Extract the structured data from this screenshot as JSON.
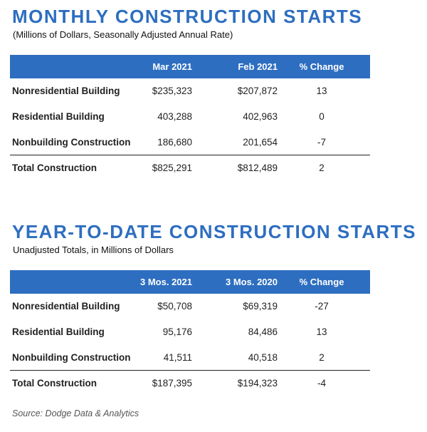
{
  "tables": [
    {
      "title": "MONTHLY CONSTRUCTION STARTS",
      "subtitle": "(Millions of Dollars, Seasonally Adjusted Annual Rate)",
      "columns": [
        "Mar 2021",
        "Feb 2021",
        "% Change"
      ],
      "rows": [
        {
          "label": "Nonresidential Building",
          "cells": [
            "$235,323",
            "$207,872",
            "13"
          ]
        },
        {
          "label": "Residential Building",
          "cells": [
            "403,288",
            "402,963",
            "0"
          ]
        },
        {
          "label": "Nonbuilding Construction",
          "cells": [
            "186,680",
            "201,654",
            "-7"
          ]
        },
        {
          "label": "Total Construction",
          "cells": [
            "$825,291",
            "$812,489",
            "2"
          ]
        }
      ]
    },
    {
      "title": "YEAR-TO-DATE CONSTRUCTION STARTS",
      "subtitle": "Unadjusted Totals, in Millions of Dollars",
      "columns": [
        "3 Mos. 2021",
        "3 Mos. 2020",
        "% Change"
      ],
      "rows": [
        {
          "label": "Nonresidential Building",
          "cells": [
            "$50,708",
            "$69,319",
            "-27"
          ]
        },
        {
          "label": "Residential Building",
          "cells": [
            "95,176",
            "84,486",
            "13"
          ]
        },
        {
          "label": "Nonbuilding Construction",
          "cells": [
            "41,511",
            "40,518",
            "2"
          ]
        },
        {
          "label": "Total Construction",
          "cells": [
            "$187,395",
            "$194,323",
            "-4"
          ]
        }
      ]
    }
  ],
  "source": "Source: Dodge Data & Analytics"
}
